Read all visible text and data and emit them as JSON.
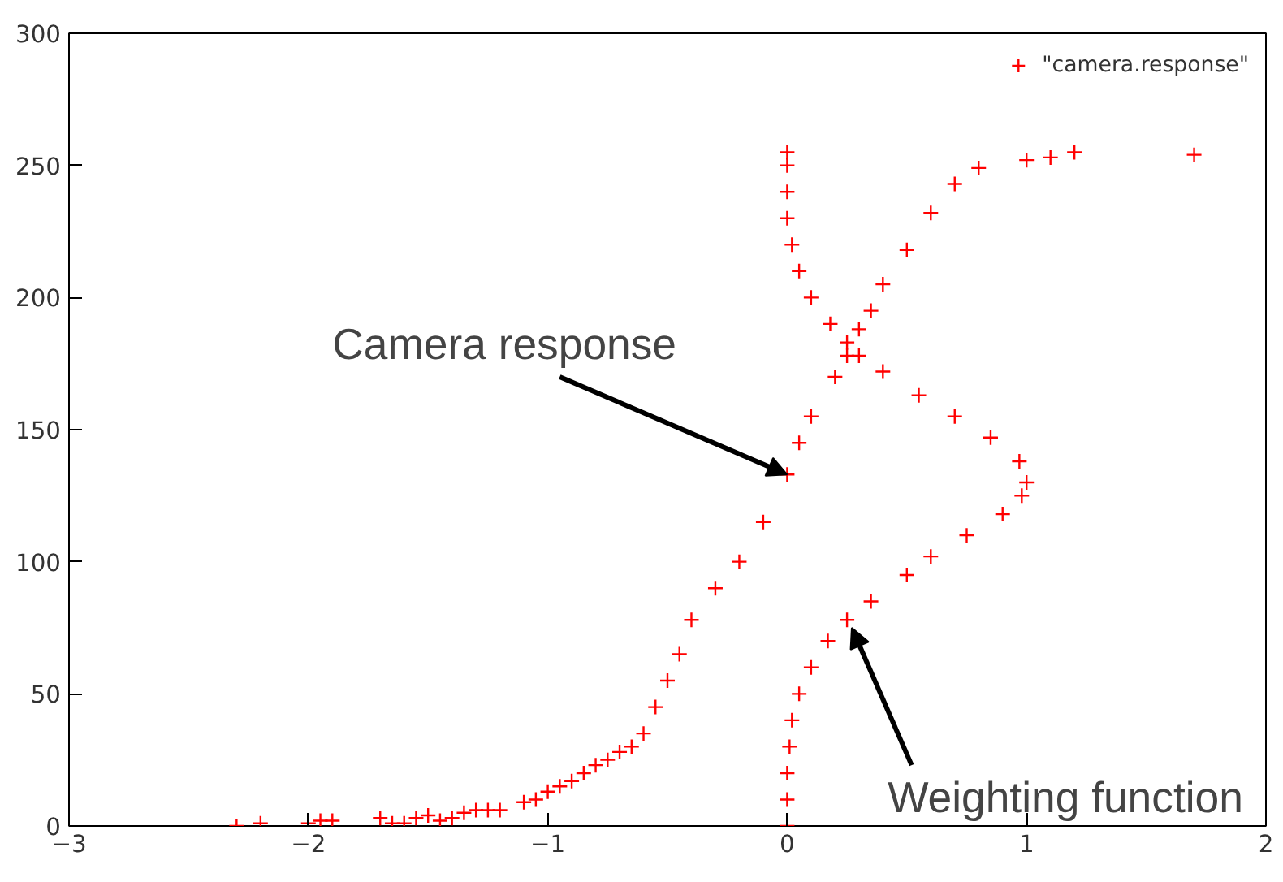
{
  "chart_data": {
    "type": "scatter",
    "xlim": [
      -3,
      2
    ],
    "ylim": [
      0,
      300
    ],
    "xticks": [
      -3,
      -2,
      -1,
      0,
      1,
      2
    ],
    "yticks": [
      0,
      50,
      100,
      150,
      200,
      250,
      300
    ],
    "grid": false,
    "legend": "top right",
    "marker": "cross",
    "series": [
      {
        "name": "\"camera.response\"",
        "color": "#ff0000",
        "x": [
          -2.3,
          -2.2,
          -2.0,
          -1.95,
          -1.9,
          -1.7,
          -1.65,
          -1.6,
          -1.55,
          -1.5,
          -1.45,
          -1.4,
          -1.35,
          -1.3,
          -1.25,
          -1.2,
          -1.1,
          -1.05,
          -1.0,
          -0.95,
          -0.9,
          -0.85,
          -0.8,
          -0.75,
          -0.7,
          -0.65,
          -0.6,
          -0.55,
          -0.5,
          -0.45,
          -0.4,
          -0.3,
          -0.2,
          -0.1,
          0,
          0.05,
          0.1,
          0.2,
          0.25,
          0.3,
          0.35,
          0.4,
          0.5,
          0.6,
          0.7,
          0.8,
          1.0,
          1.1,
          1.2,
          1.7,
          0,
          0,
          0,
          0.01,
          0.02,
          0.05,
          0.1,
          0.17,
          0.25,
          0.35,
          0.5,
          0.6,
          0.75,
          0.9,
          0.98,
          1.0,
          0.97,
          0.85,
          0.7,
          0.55,
          0.4,
          0.3,
          0.25,
          0.18,
          0.1,
          0.05,
          0.02,
          0,
          0,
          0,
          0
        ],
        "values": [
          0,
          1,
          1,
          2,
          2,
          3,
          1,
          1,
          3,
          4,
          2,
          3,
          5,
          6,
          6,
          6,
          9,
          10,
          13,
          15,
          17,
          20,
          23,
          25,
          28,
          30,
          35,
          45,
          55,
          65,
          78,
          90,
          100,
          115,
          133,
          145,
          155,
          170,
          178,
          188,
          195,
          205,
          218,
          232,
          243,
          249,
          252,
          253,
          255,
          254,
          0,
          10,
          20,
          30,
          40,
          50,
          60,
          70,
          78,
          85,
          95,
          102,
          110,
          118,
          125,
          130,
          138,
          147,
          155,
          163,
          172,
          178,
          183,
          190,
          200,
          210,
          220,
          230,
          240,
          250,
          255
        ]
      }
    ],
    "annotations": [
      {
        "text": "Camera response",
        "x": 0,
        "y": 133
      },
      {
        "text": "Weighting function",
        "x": 0.27,
        "y": 75
      }
    ]
  }
}
